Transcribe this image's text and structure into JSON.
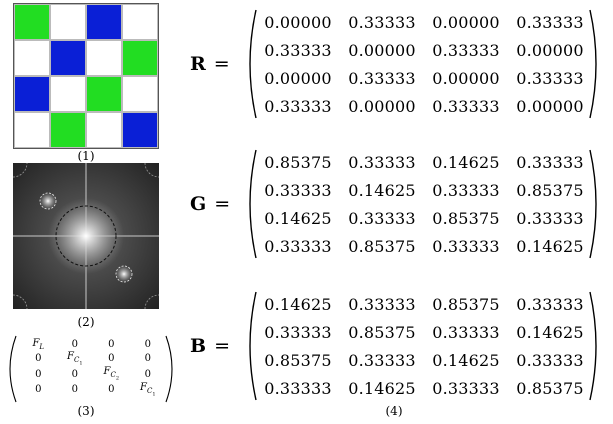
{
  "panel1": {
    "caption": "(1)",
    "colors": {
      "green": "#22dd22",
      "blue": "#0a1fd6",
      "white": "#ffffff"
    },
    "grid": [
      [
        "green",
        "white",
        "blue",
        "white"
      ],
      [
        "white",
        "blue",
        "white",
        "green"
      ],
      [
        "blue",
        "white",
        "green",
        "white"
      ],
      [
        "white",
        "green",
        "white",
        "blue"
      ]
    ]
  },
  "panel2": {
    "caption": "(2)"
  },
  "panel3": {
    "caption": "(3)",
    "matrix": [
      [
        "F_L",
        "0",
        "0",
        "0"
      ],
      [
        "0",
        "F_C1",
        "0",
        "0"
      ],
      [
        "0",
        "0",
        "F_C2",
        "0"
      ],
      [
        "0",
        "0",
        "0",
        "F_C1"
      ]
    ]
  },
  "panel4": {
    "caption": "(4)",
    "matrices": [
      {
        "name": "R",
        "equals": "=",
        "rows": [
          [
            "0.00000",
            "0.33333",
            "0.00000",
            "0.33333"
          ],
          [
            "0.33333",
            "0.00000",
            "0.33333",
            "0.00000"
          ],
          [
            "0.00000",
            "0.33333",
            "0.00000",
            "0.33333"
          ],
          [
            "0.33333",
            "0.00000",
            "0.33333",
            "0.00000"
          ]
        ]
      },
      {
        "name": "G",
        "equals": "=",
        "rows": [
          [
            "0.85375",
            "0.33333",
            "0.14625",
            "0.33333"
          ],
          [
            "0.33333",
            "0.14625",
            "0.33333",
            "0.85375"
          ],
          [
            "0.14625",
            "0.33333",
            "0.85375",
            "0.33333"
          ],
          [
            "0.33333",
            "0.85375",
            "0.33333",
            "0.14625"
          ]
        ]
      },
      {
        "name": "B",
        "equals": "=",
        "rows": [
          [
            "0.14625",
            "0.33333",
            "0.85375",
            "0.33333"
          ],
          [
            "0.33333",
            "0.85375",
            "0.33333",
            "0.14625"
          ],
          [
            "0.85375",
            "0.33333",
            "0.14625",
            "0.33333"
          ],
          [
            "0.33333",
            "0.14625",
            "0.33333",
            "0.85375"
          ]
        ]
      }
    ]
  }
}
